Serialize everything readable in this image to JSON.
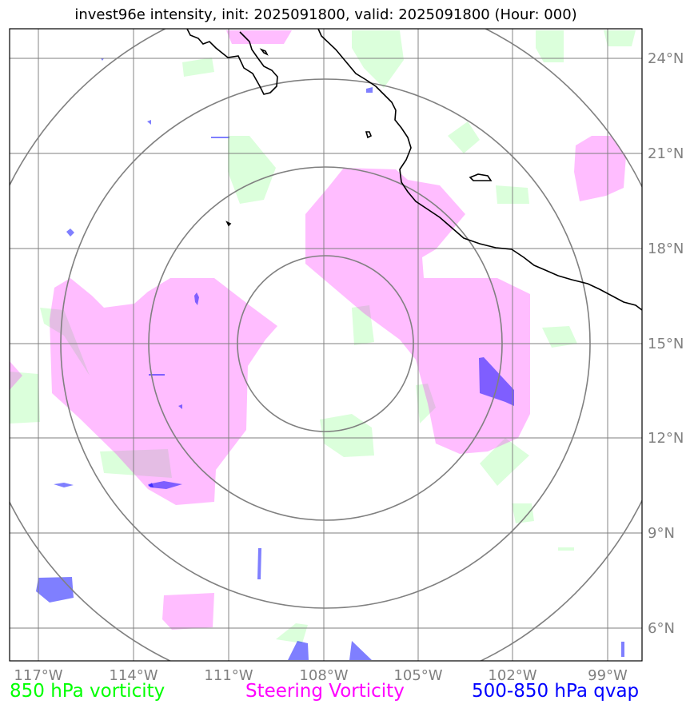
{
  "title": "invest96e intensity, init: 2025091800, valid: 2025091800 (Hour: 000)",
  "map": {
    "lon_ticks": [
      "117°W",
      "114°W",
      "111°W",
      "108°W",
      "105°W",
      "102°W",
      "99°W"
    ],
    "lat_ticks": [
      "24°N",
      "21°N",
      "18°N",
      "15°N",
      "12°N",
      "9°N",
      "6°N"
    ],
    "center": "108°W, 15°N",
    "range_rings": 4,
    "colors": {
      "vorticity_850": "#00ff00",
      "steering_vorticity": "#ff00ff",
      "qvap": "#0000ff",
      "grid": "#808080",
      "coastline": "#000000"
    }
  },
  "legend": {
    "vort850": "850 hPa vorticity",
    "steering": "Steering Vorticity",
    "qvap": "500-850 hPa qvap"
  }
}
